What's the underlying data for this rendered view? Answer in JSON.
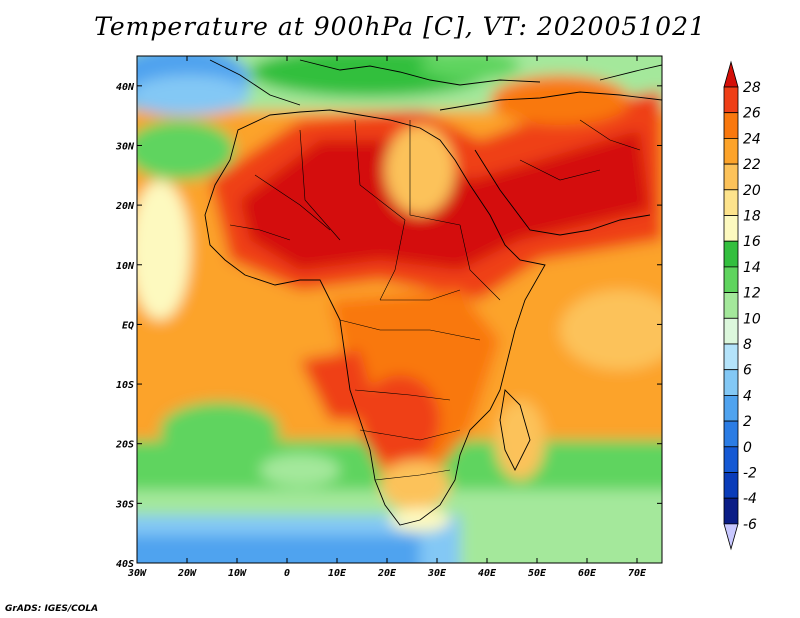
{
  "title": "Temperature at 900hPa [C], VT: 2020051021",
  "credit": "GrADS: IGES/COLA",
  "map": {
    "variable": "Temperature at 900hPa",
    "units": "C",
    "valid_time": "2020051021",
    "lon_ticks": [
      "30W",
      "20W",
      "10W",
      "0",
      "10E",
      "20E",
      "30E",
      "40E",
      "50E",
      "60E",
      "70E"
    ],
    "lat_ticks": [
      "40N",
      "30N",
      "20N",
      "10N",
      "EQ",
      "10S",
      "20S",
      "30S",
      "40S"
    ],
    "lon_range": [
      -30,
      75
    ],
    "lat_range": [
      -40,
      45
    ]
  },
  "colorbar": {
    "labels": [
      "28",
      "26",
      "24",
      "22",
      "20",
      "18",
      "16",
      "14",
      "12",
      "10",
      "8",
      "6",
      "4",
      "2",
      "0",
      "-2",
      "-4",
      "-6"
    ],
    "colors": [
      "#d40f08",
      "#ef3f17",
      "#f9780e",
      "#fca32a",
      "#fcc25a",
      "#fde38c",
      "#fdf9bf",
      "#33bf3e",
      "#5fd45e",
      "#a4e89b",
      "#dcf7dc",
      "#b4e3fa",
      "#83c8f5",
      "#4fa3ef",
      "#2b7ce4",
      "#1559d4",
      "#0a3cb9",
      "#0b1d86",
      "#c8c8ff"
    ]
  }
}
